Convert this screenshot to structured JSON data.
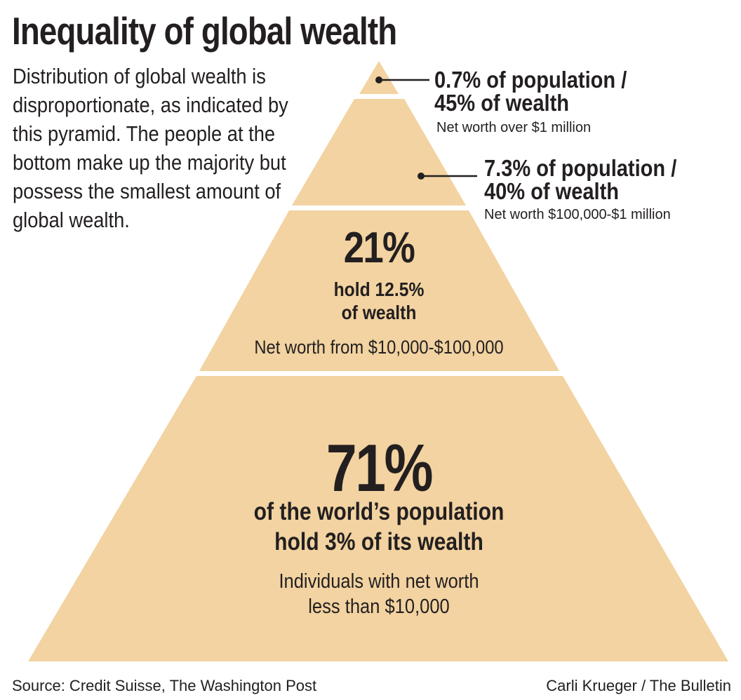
{
  "title": "Inequality of global wealth",
  "intro": "Distribution of global wealth is disproportionate, as indicated by this pyramid. The people at the bottom make up the majority but possess the smallest amount of global wealth.",
  "tiers": {
    "top": {
      "line1": "0.7% of population /",
      "line2": "45% of wealth",
      "sub": "Net worth over $1 million"
    },
    "upper": {
      "line1": "7.3% of population /",
      "line2": "40% of wealth",
      "sub": "Net worth $100,000-$1 million"
    },
    "middle": {
      "pct": "21%",
      "line1": "hold 12.5%",
      "line2": "of wealth",
      "sub": "Net worth from $10,000-$100,000"
    },
    "bottom": {
      "pct": "71%",
      "line1": "of the world’s population",
      "line2": "hold 3% of its wealth",
      "sub1": "Individuals with net worth",
      "sub2": "less than $10,000"
    }
  },
  "source": "Source: Credit Suisse, The Washington Post",
  "credit": "Carli Krueger / The Bulletin",
  "colors": {
    "pyramid": "#f2d3a1",
    "text": "#231f20",
    "background": "#ffffff"
  }
}
